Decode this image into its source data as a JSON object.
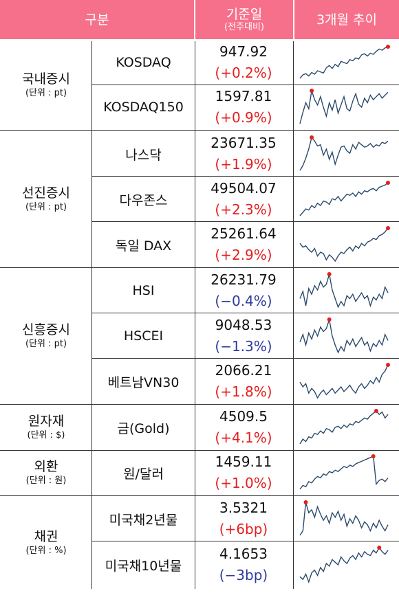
{
  "header": {
    "category": "구분",
    "base_date": "기준일",
    "base_date_sub": "(전주대비)",
    "trend": "3개월 추이"
  },
  "colors": {
    "header_bg": "#f7708b",
    "positive": "#e61e1e",
    "negative": "#2d3a9c",
    "sparkline": "#2b4a6b",
    "peak_marker": "#e61e1e"
  },
  "groups": [
    {
      "name": "국내증시",
      "unit": "(단위 : pt)",
      "rows": [
        {
          "name": "KOSDAQ",
          "value": "947.92",
          "change": "(+0.2%)",
          "direction": "up",
          "trend": [
            20,
            26,
            28,
            24,
            30,
            27,
            33,
            31,
            29,
            38,
            42,
            37,
            44,
            40,
            49,
            47,
            45,
            52,
            50,
            55,
            53,
            60,
            62,
            58,
            63,
            61,
            66,
            70,
            68,
            72,
            74
          ]
        },
        {
          "name": "KOSDAQ150",
          "value": "1597.81",
          "change": "(+0.9%)",
          "direction": "up",
          "trend": [
            30,
            45,
            58,
            50,
            74,
            62,
            55,
            66,
            52,
            40,
            58,
            48,
            62,
            44,
            55,
            66,
            50,
            47,
            60,
            70,
            56,
            52,
            64,
            58,
            68,
            62,
            66,
            70,
            64,
            68,
            72
          ]
        }
      ]
    },
    {
      "name": "선진증시",
      "unit": "(단위 : pt)",
      "rows": [
        {
          "name": "나스닥",
          "value": "23671.35",
          "change": "(+1.9%)",
          "direction": "up",
          "trend": [
            20,
            28,
            40,
            55,
            74,
            68,
            60,
            62,
            45,
            55,
            38,
            50,
            30,
            45,
            58,
            60,
            52,
            48,
            62,
            55,
            66,
            62,
            58,
            60,
            64,
            58,
            62,
            60,
            66,
            64,
            68
          ]
        },
        {
          "name": "다우존스",
          "value": "49504.07",
          "change": "(+2.3%)",
          "direction": "up",
          "trend": [
            18,
            24,
            30,
            28,
            36,
            32,
            40,
            36,
            44,
            42,
            38,
            48,
            46,
            52,
            44,
            50,
            56,
            54,
            58,
            52,
            60,
            56,
            62,
            60,
            64,
            66,
            62,
            68,
            70,
            72,
            76
          ]
        },
        {
          "name": "독일 DAX",
          "value": "25261.64",
          "change": "(+2.9%)",
          "direction": "up",
          "trend": [
            44,
            38,
            40,
            34,
            30,
            36,
            24,
            30,
            28,
            18,
            26,
            22,
            16,
            24,
            30,
            28,
            34,
            38,
            32,
            40,
            36,
            44,
            40,
            46,
            48,
            52,
            50,
            56,
            58,
            62,
            68
          ]
        }
      ]
    },
    {
      "name": "신흥증시",
      "unit": "(단위 : pt)",
      "rows": [
        {
          "name": "HSI",
          "value": "26231.79",
          "change": "(−0.4%)",
          "direction": "down",
          "trend": [
            40,
            50,
            30,
            54,
            46,
            58,
            52,
            64,
            56,
            60,
            74,
            52,
            40,
            28,
            36,
            30,
            44,
            40,
            46,
            36,
            42,
            48,
            40,
            44,
            30,
            42,
            38,
            46,
            40,
            56,
            48
          ]
        },
        {
          "name": "HSCEI",
          "value": "9048.53",
          "change": "(−1.3%)",
          "direction": "down",
          "trend": [
            44,
            54,
            40,
            56,
            48,
            60,
            52,
            64,
            58,
            62,
            74,
            52,
            40,
            30,
            38,
            32,
            46,
            40,
            48,
            38,
            44,
            50,
            40,
            44,
            32,
            42,
            38,
            46,
            40,
            54,
            46
          ]
        },
        {
          "name": "베트남VN30",
          "value": "2066.21",
          "change": "(+1.8%)",
          "direction": "up",
          "trend": [
            50,
            44,
            48,
            36,
            42,
            38,
            30,
            36,
            40,
            34,
            38,
            42,
            36,
            40,
            44,
            38,
            42,
            46,
            40,
            36,
            44,
            48,
            42,
            46,
            52,
            48,
            56,
            50,
            60,
            64,
            72
          ]
        }
      ]
    },
    {
      "name": "원자재",
      "unit": "(단위 : $)",
      "rows": [
        {
          "name": "금(Gold)",
          "value": "4509.5",
          "change": "(+4.1%)",
          "direction": "up",
          "trend": [
            18,
            26,
            22,
            30,
            28,
            36,
            34,
            40,
            36,
            44,
            42,
            38,
            46,
            48,
            44,
            50,
            46,
            52,
            50,
            56,
            54,
            58,
            62,
            60,
            66,
            70,
            74,
            68,
            72,
            62,
            68
          ]
        }
      ]
    },
    {
      "name": "외환",
      "unit": "(단위 : 원)",
      "rows": [
        {
          "name": "원/달러",
          "value": "1459.11",
          "change": "(+1.0%)",
          "direction": "up",
          "trend": [
            22,
            28,
            26,
            34,
            32,
            38,
            42,
            40,
            46,
            44,
            50,
            48,
            52,
            50,
            54,
            58,
            56,
            60,
            58,
            62,
            64,
            66,
            68,
            70,
            72,
            74,
            30,
            36,
            38,
            34,
            40
          ]
        }
      ]
    },
    {
      "name": "채권",
      "unit": "(단위 : %)",
      "rows": [
        {
          "name": "미국채2년물",
          "value": "3.5321",
          "change": "(+6bp)",
          "direction": "up",
          "trend": [
            30,
            36,
            74,
            60,
            64,
            54,
            68,
            58,
            50,
            56,
            46,
            60,
            54,
            62,
            50,
            58,
            42,
            52,
            46,
            56,
            50,
            40,
            48,
            44,
            36,
            46,
            40,
            50,
            42,
            36,
            44
          ]
        },
        {
          "name": "미국채10년물",
          "value": "4.1653",
          "change": "(−3bp)",
          "direction": "down",
          "trend": [
            30,
            26,
            34,
            22,
            36,
            40,
            32,
            44,
            38,
            50,
            46,
            56,
            52,
            48,
            60,
            54,
            50,
            58,
            62,
            56,
            66,
            60,
            68,
            64,
            62,
            70,
            66,
            74,
            68,
            64,
            70
          ]
        }
      ]
    }
  ]
}
